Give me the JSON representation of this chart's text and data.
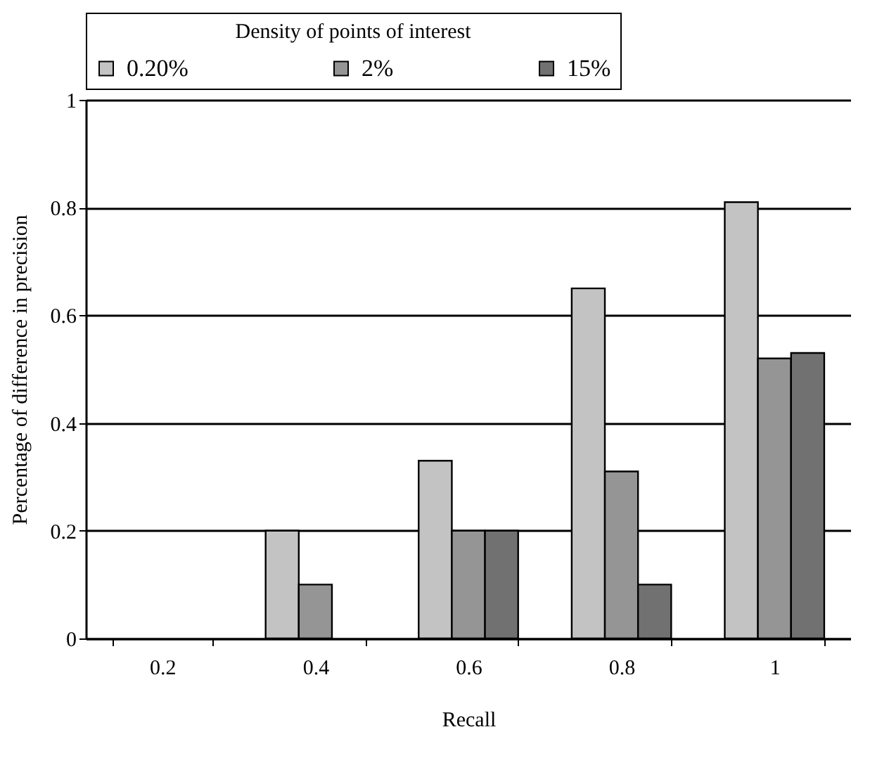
{
  "chart_data": {
    "type": "bar",
    "legend_title": "Density of points of interest",
    "xlabel": "Recall",
    "ylabel": "Percentage of difference in precision",
    "categories": [
      "0.2",
      "0.4",
      "0.6",
      "0.8",
      "1"
    ],
    "series": [
      {
        "name": "0.20%",
        "color": "#c3c3c3",
        "values": [
          0,
          0.2,
          0.33,
          0.65,
          0.81
        ]
      },
      {
        "name": "2%",
        "color": "#959595",
        "values": [
          0,
          0.1,
          0.2,
          0.31,
          0.52
        ]
      },
      {
        "name": "15%",
        "color": "#717171",
        "values": [
          0,
          0,
          0.2,
          0.1,
          0.53
        ]
      }
    ],
    "ylim": [
      0,
      1
    ],
    "yticks": [
      0,
      0.2,
      0.4,
      0.6,
      0.8,
      1
    ],
    "grid": "y",
    "legend": "top"
  }
}
